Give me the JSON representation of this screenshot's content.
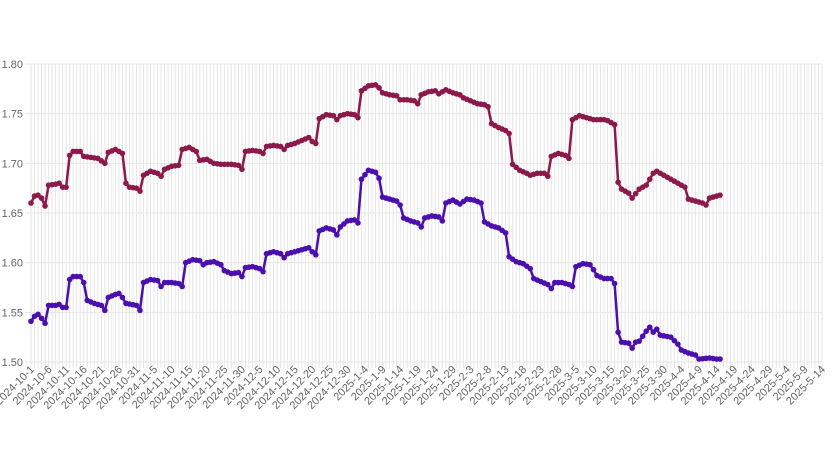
{
  "chart_data": {
    "type": "line",
    "title": "",
    "xlabel": "",
    "ylabel": "",
    "ylim": [
      1.5,
      1.8
    ],
    "yticks": [
      "1.50",
      "1.55",
      "1.60",
      "1.65",
      "1.70",
      "1.75",
      "1.80"
    ],
    "grid": true,
    "legend": "none",
    "x_labels": [
      "2024-10-1",
      "2024-10-6",
      "2024-10-11",
      "2024-10-16",
      "2024-10-21",
      "2024-10-26",
      "2024-10-31",
      "2024-11-5",
      "2024-11-10",
      "2024-11-15",
      "2024-11-20",
      "2024-11-25",
      "2024-11-30",
      "2024-12-5",
      "2024-12-10",
      "2024-12-15",
      "2024-12-20",
      "2024-12-25",
      "2024-12-30",
      "2025-1-4",
      "2025-1-9",
      "2025-1-14",
      "2025-1-19",
      "2025-1-24",
      "2025-1-29",
      "2025-2-3",
      "2025-2-8",
      "2025-2-13",
      "2025-2-18",
      "2025-2-23",
      "2025-2-28",
      "2025-3-5",
      "2025-3-10",
      "2025-3-15",
      "2025-3-20",
      "2025-3-25",
      "2025-3-30",
      "2025-4-4",
      "2025-4-9",
      "2025-4-14",
      "2025-4-19",
      "2025-4-24",
      "2025-4-29",
      "2025-5-4",
      "2025-5-9",
      "2025-5-14"
    ],
    "series": [
      {
        "color": "#8b1a4a",
        "anchors": [
          [
            "2024-10-1",
            1.66
          ],
          [
            "2024-10-2",
            1.667
          ],
          [
            "2024-10-3",
            1.668
          ],
          [
            "2024-10-4",
            1.665
          ],
          [
            "2024-10-5",
            1.657
          ],
          [
            "2024-10-6",
            1.678
          ],
          [
            "2024-10-8",
            1.679
          ],
          [
            "2024-10-9",
            1.68
          ],
          [
            "2024-10-10",
            1.676
          ],
          [
            "2024-10-11",
            1.676
          ],
          [
            "2024-10-12",
            1.708
          ],
          [
            "2024-10-13",
            1.712
          ],
          [
            "2024-10-15",
            1.712
          ],
          [
            "2024-10-16",
            1.707
          ],
          [
            "2024-10-18",
            1.706
          ],
          [
            "2024-10-20",
            1.705
          ],
          [
            "2024-10-22",
            1.7
          ],
          [
            "2024-10-23",
            1.711
          ],
          [
            "2024-10-25",
            1.714
          ],
          [
            "2024-10-27",
            1.71
          ],
          [
            "2024-10-28",
            1.68
          ],
          [
            "2024-10-29",
            1.676
          ],
          [
            "2024-10-31",
            1.675
          ],
          [
            "2024-11-1",
            1.672
          ],
          [
            "2024-11-2",
            1.688
          ],
          [
            "2024-11-4",
            1.692
          ],
          [
            "2024-11-6",
            1.69
          ],
          [
            "2024-11-7",
            1.687
          ],
          [
            "2024-11-8",
            1.694
          ],
          [
            "2024-11-10",
            1.697
          ],
          [
            "2024-11-12",
            1.698
          ],
          [
            "2024-11-13",
            1.714
          ],
          [
            "2024-11-15",
            1.716
          ],
          [
            "2024-11-17",
            1.712
          ],
          [
            "2024-11-18",
            1.703
          ],
          [
            "2024-11-20",
            1.704
          ],
          [
            "2024-11-22",
            1.7
          ],
          [
            "2024-11-24",
            1.699
          ],
          [
            "2024-11-27",
            1.699
          ],
          [
            "2024-11-29",
            1.698
          ],
          [
            "2024-11-30",
            1.694
          ],
          [
            "2024-12-1",
            1.712
          ],
          [
            "2024-12-3",
            1.713
          ],
          [
            "2024-12-5",
            1.712
          ],
          [
            "2024-12-6",
            1.71
          ],
          [
            "2024-12-7",
            1.717
          ],
          [
            "2024-12-9",
            1.718
          ],
          [
            "2024-12-11",
            1.717
          ],
          [
            "2024-12-12",
            1.714
          ],
          [
            "2024-12-13",
            1.718
          ],
          [
            "2024-12-15",
            1.72
          ],
          [
            "2024-12-17",
            1.723
          ],
          [
            "2024-12-19",
            1.726
          ],
          [
            "2024-12-20",
            1.722
          ],
          [
            "2024-12-21",
            1.72
          ],
          [
            "2024-12-22",
            1.745
          ],
          [
            "2024-12-24",
            1.749
          ],
          [
            "2024-12-26",
            1.748
          ],
          [
            "2024-12-27",
            1.744
          ],
          [
            "2024-12-28",
            1.748
          ],
          [
            "2024-12-30",
            1.75
          ],
          [
            "2025-1-1",
            1.749
          ],
          [
            "2025-1-2",
            1.746
          ],
          [
            "2025-1-3",
            1.773
          ],
          [
            "2025-1-5",
            1.778
          ],
          [
            "2025-1-7",
            1.779
          ],
          [
            "2025-1-8",
            1.776
          ],
          [
            "2025-1-9",
            1.771
          ],
          [
            "2025-1-11",
            1.769
          ],
          [
            "2025-1-13",
            1.768
          ],
          [
            "2025-1-14",
            1.764
          ],
          [
            "2025-1-16",
            1.764
          ],
          [
            "2025-1-18",
            1.763
          ],
          [
            "2025-1-19",
            1.76
          ],
          [
            "2025-1-20",
            1.769
          ],
          [
            "2025-1-22",
            1.772
          ],
          [
            "2025-1-24",
            1.773
          ],
          [
            "2025-1-25",
            1.77
          ],
          [
            "2025-1-27",
            1.774
          ],
          [
            "2025-1-29",
            1.771
          ],
          [
            "2025-1-31",
            1.769
          ],
          [
            "2025-2-1",
            1.766
          ],
          [
            "2025-2-3",
            1.763
          ],
          [
            "2025-2-5",
            1.76
          ],
          [
            "2025-2-7",
            1.759
          ],
          [
            "2025-2-8",
            1.757
          ],
          [
            "2025-2-9",
            1.74
          ],
          [
            "2025-2-11",
            1.736
          ],
          [
            "2025-2-13",
            1.733
          ],
          [
            "2025-2-14",
            1.73
          ],
          [
            "2025-2-15",
            1.699
          ],
          [
            "2025-2-17",
            1.693
          ],
          [
            "2025-2-19",
            1.69
          ],
          [
            "2025-2-20",
            1.688
          ],
          [
            "2025-2-22",
            1.69
          ],
          [
            "2025-2-24",
            1.69
          ],
          [
            "2025-2-25",
            1.687
          ],
          [
            "2025-2-26",
            1.707
          ],
          [
            "2025-2-28",
            1.71
          ],
          [
            "2025-3-2",
            1.708
          ],
          [
            "2025-3-3",
            1.705
          ],
          [
            "2025-3-4",
            1.744
          ],
          [
            "2025-3-6",
            1.748
          ],
          [
            "2025-3-8",
            1.746
          ],
          [
            "2025-3-10",
            1.744
          ],
          [
            "2025-3-13",
            1.744
          ],
          [
            "2025-3-14",
            1.743
          ],
          [
            "2025-3-16",
            1.739
          ],
          [
            "2025-3-17",
            1.681
          ],
          [
            "2025-3-18",
            1.674
          ],
          [
            "2025-3-20",
            1.67
          ],
          [
            "2025-3-21",
            1.665
          ],
          [
            "2025-3-23",
            1.674
          ],
          [
            "2025-3-25",
            1.678
          ],
          [
            "2025-3-27",
            1.69
          ],
          [
            "2025-3-28",
            1.692
          ],
          [
            "2025-3-30",
            1.688
          ],
          [
            "2025-4-1",
            1.684
          ],
          [
            "2025-4-3",
            1.68
          ],
          [
            "2025-4-5",
            1.676
          ],
          [
            "2025-4-6",
            1.664
          ],
          [
            "2025-4-8",
            1.662
          ],
          [
            "2025-4-10",
            1.66
          ],
          [
            "2025-4-11",
            1.658
          ],
          [
            "2025-4-12",
            1.665
          ],
          [
            "2025-4-14",
            1.667
          ],
          [
            "2025-4-15",
            1.668
          ]
        ]
      },
      {
        "color": "#4b0fae",
        "anchors": [
          [
            "2024-10-1",
            1.541
          ],
          [
            "2024-10-2",
            1.546
          ],
          [
            "2024-10-3",
            1.548
          ],
          [
            "2024-10-4",
            1.544
          ],
          [
            "2024-10-5",
            1.539
          ],
          [
            "2024-10-6",
            1.557
          ],
          [
            "2024-10-8",
            1.557
          ],
          [
            "2024-10-9",
            1.558
          ],
          [
            "2024-10-10",
            1.555
          ],
          [
            "2024-10-11",
            1.555
          ],
          [
            "2024-10-12",
            1.583
          ],
          [
            "2024-10-13",
            1.586
          ],
          [
            "2024-10-15",
            1.586
          ],
          [
            "2024-10-16",
            1.58
          ],
          [
            "2024-10-17",
            1.562
          ],
          [
            "2024-10-19",
            1.559
          ],
          [
            "2024-10-21",
            1.557
          ],
          [
            "2024-10-22",
            1.552
          ],
          [
            "2024-10-23",
            1.565
          ],
          [
            "2024-10-25",
            1.568
          ],
          [
            "2024-10-26",
            1.569
          ],
          [
            "2024-10-27",
            1.565
          ],
          [
            "2024-10-28",
            1.559
          ],
          [
            "2024-10-31",
            1.557
          ],
          [
            "2024-11-1",
            1.552
          ],
          [
            "2024-11-2",
            1.58
          ],
          [
            "2024-11-4",
            1.583
          ],
          [
            "2024-11-6",
            1.582
          ],
          [
            "2024-11-7",
            1.576
          ],
          [
            "2024-11-8",
            1.58
          ],
          [
            "2024-11-10",
            1.58
          ],
          [
            "2024-11-12",
            1.579
          ],
          [
            "2024-11-13",
            1.576
          ],
          [
            "2024-11-14",
            1.6
          ],
          [
            "2024-11-16",
            1.603
          ],
          [
            "2024-11-18",
            1.602
          ],
          [
            "2024-11-19",
            1.598
          ],
          [
            "2024-11-20",
            1.6
          ],
          [
            "2024-11-22",
            1.601
          ],
          [
            "2024-11-24",
            1.598
          ],
          [
            "2024-11-25",
            1.592
          ],
          [
            "2024-11-27",
            1.589
          ],
          [
            "2024-11-29",
            1.59
          ],
          [
            "2024-11-30",
            1.586
          ],
          [
            "2024-12-1",
            1.595
          ],
          [
            "2024-12-3",
            1.596
          ],
          [
            "2024-12-5",
            1.594
          ],
          [
            "2024-12-6",
            1.591
          ],
          [
            "2024-12-7",
            1.609
          ],
          [
            "2024-12-9",
            1.611
          ],
          [
            "2024-12-11",
            1.609
          ],
          [
            "2024-12-12",
            1.605
          ],
          [
            "2024-12-13",
            1.609
          ],
          [
            "2024-12-15",
            1.611
          ],
          [
            "2024-12-17",
            1.613
          ],
          [
            "2024-12-19",
            1.615
          ],
          [
            "2024-12-20",
            1.611
          ],
          [
            "2024-12-21",
            1.608
          ],
          [
            "2024-12-22",
            1.632
          ],
          [
            "2024-12-24",
            1.635
          ],
          [
            "2024-12-26",
            1.633
          ],
          [
            "2024-12-27",
            1.628
          ],
          [
            "2024-12-28",
            1.636
          ],
          [
            "2024-12-30",
            1.642
          ],
          [
            "2025-1-1",
            1.643
          ],
          [
            "2025-1-2",
            1.64
          ],
          [
            "2025-1-3",
            1.684
          ],
          [
            "2025-1-5",
            1.693
          ],
          [
            "2025-1-7",
            1.691
          ],
          [
            "2025-1-8",
            1.685
          ],
          [
            "2025-1-9",
            1.666
          ],
          [
            "2025-1-11",
            1.664
          ],
          [
            "2025-1-13",
            1.662
          ],
          [
            "2025-1-14",
            1.658
          ],
          [
            "2025-1-15",
            1.645
          ],
          [
            "2025-1-17",
            1.642
          ],
          [
            "2025-1-19",
            1.64
          ],
          [
            "2025-1-20",
            1.636
          ],
          [
            "2025-1-21",
            1.645
          ],
          [
            "2025-1-23",
            1.647
          ],
          [
            "2025-1-25",
            1.646
          ],
          [
            "2025-1-26",
            1.642
          ],
          [
            "2025-1-27",
            1.66
          ],
          [
            "2025-1-29",
            1.663
          ],
          [
            "2025-1-31",
            1.659
          ],
          [
            "2025-2-2",
            1.664
          ],
          [
            "2025-2-4",
            1.663
          ],
          [
            "2025-2-6",
            1.66
          ],
          [
            "2025-2-7",
            1.641
          ],
          [
            "2025-2-9",
            1.637
          ],
          [
            "2025-2-11",
            1.635
          ],
          [
            "2025-2-13",
            1.63
          ],
          [
            "2025-2-14",
            1.606
          ],
          [
            "2025-2-16",
            1.601
          ],
          [
            "2025-2-18",
            1.599
          ],
          [
            "2025-2-20",
            1.594
          ],
          [
            "2025-2-21",
            1.584
          ],
          [
            "2025-2-23",
            1.581
          ],
          [
            "2025-2-25",
            1.578
          ],
          [
            "2025-2-26",
            1.574
          ],
          [
            "2025-2-27",
            1.58
          ],
          [
            "2025-3-1",
            1.58
          ],
          [
            "2025-3-3",
            1.578
          ],
          [
            "2025-3-4",
            1.576
          ],
          [
            "2025-3-5",
            1.596
          ],
          [
            "2025-3-7",
            1.599
          ],
          [
            "2025-3-9",
            1.598
          ],
          [
            "2025-3-10",
            1.593
          ],
          [
            "2025-3-11",
            1.587
          ],
          [
            "2025-3-13",
            1.584
          ],
          [
            "2025-3-15",
            1.584
          ],
          [
            "2025-3-16",
            1.579
          ],
          [
            "2025-3-17",
            1.53
          ],
          [
            "2025-3-18",
            1.52
          ],
          [
            "2025-3-20",
            1.519
          ],
          [
            "2025-3-21",
            1.514
          ],
          [
            "2025-3-22",
            1.52
          ],
          [
            "2025-3-23",
            1.521
          ],
          [
            "2025-3-25",
            1.531
          ],
          [
            "2025-3-26",
            1.535
          ],
          [
            "2025-3-27",
            1.53
          ],
          [
            "2025-3-28",
            1.533
          ],
          [
            "2025-3-29",
            1.527
          ],
          [
            "2025-4-1",
            1.525
          ],
          [
            "2025-4-3",
            1.518
          ],
          [
            "2025-4-4",
            1.512
          ],
          [
            "2025-4-6",
            1.509
          ],
          [
            "2025-4-8",
            1.507
          ],
          [
            "2025-4-9",
            1.503
          ],
          [
            "2025-4-12",
            1.504
          ],
          [
            "2025-4-14",
            1.503
          ],
          [
            "2025-4-15",
            1.503
          ]
        ]
      }
    ]
  }
}
